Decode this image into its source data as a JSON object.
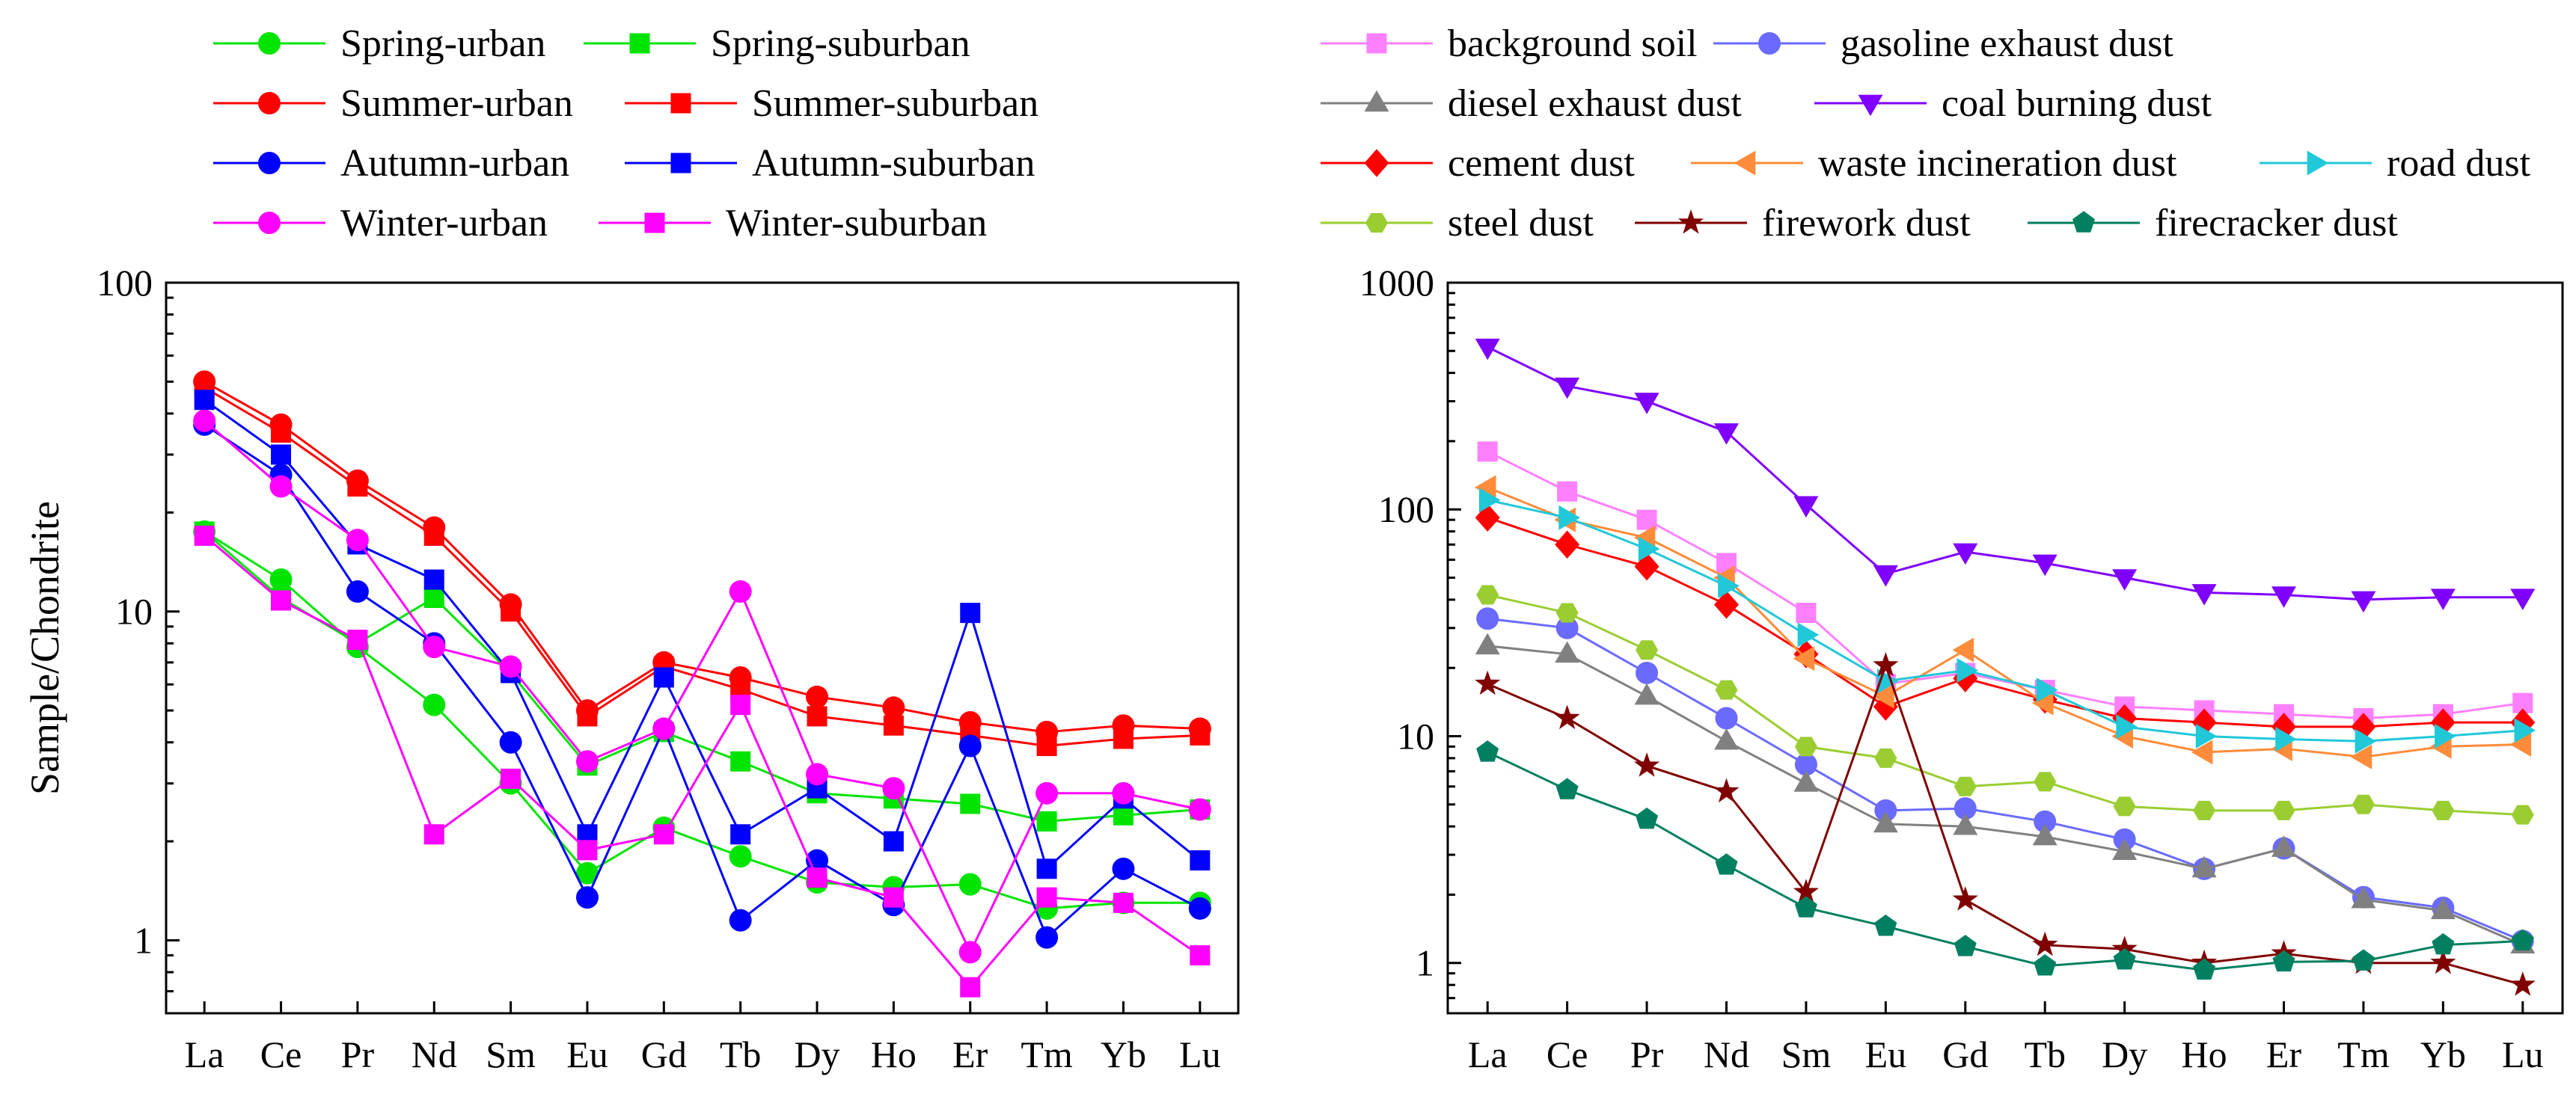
{
  "chart_data": [
    {
      "type": "line",
      "yscale": "log",
      "ylabel": "Sample/Chondrite",
      "xlabel": "",
      "ylim": [
        0.6,
        100
      ],
      "yticks": [
        1,
        10,
        100
      ],
      "ytick_labels": [
        "1",
        "10",
        "100"
      ],
      "categories": [
        "La",
        "Ce",
        "Pr",
        "Nd",
        "Sm",
        "Eu",
        "Gd",
        "Tb",
        "Dy",
        "Ho",
        "Er",
        "Tm",
        "Yb",
        "Lu"
      ],
      "legend_columns": 2,
      "series": [
        {
          "name": "Spring-urban",
          "color": "#00e400",
          "marker": "circle",
          "values": [
            17.5,
            12.5,
            7.8,
            5.2,
            3.0,
            1.6,
            2.2,
            1.8,
            1.5,
            1.45,
            1.48,
            1.25,
            1.3,
            1.3
          ]
        },
        {
          "name": "Spring-suburban",
          "color": "#00e400",
          "marker": "square",
          "values": [
            17.5,
            11,
            8,
            11,
            6.5,
            3.4,
            4.3,
            3.5,
            2.8,
            2.7,
            2.6,
            2.3,
            2.4,
            2.5
          ]
        },
        {
          "name": "Summer-urban",
          "color": "#ff0000",
          "marker": "circle",
          "values": [
            50,
            37,
            25,
            18,
            10.5,
            5,
            7,
            6.3,
            5.5,
            5.1,
            4.6,
            4.3,
            4.5,
            4.4
          ]
        },
        {
          "name": "Summer-suburban",
          "color": "#ff0000",
          "marker": "square",
          "values": [
            48,
            35,
            24,
            17,
            10,
            4.8,
            6.8,
            5.8,
            4.8,
            4.5,
            4.2,
            3.9,
            4.1,
            4.2
          ]
        },
        {
          "name": "Autumn-urban",
          "color": "#0000ff",
          "marker": "circle",
          "values": [
            37,
            26,
            11.5,
            8,
            4,
            1.35,
            4.4,
            1.15,
            1.75,
            1.28,
            3.9,
            1.02,
            1.65,
            1.25
          ]
        },
        {
          "name": "Autumn-suburban",
          "color": "#0000ff",
          "marker": "square",
          "values": [
            44,
            30,
            16,
            12.5,
            6.5,
            2.1,
            6.3,
            2.1,
            2.9,
            2.0,
            9.9,
            1.65,
            2.7,
            1.75
          ]
        },
        {
          "name": "Winter-urban",
          "color": "#ff00ff",
          "marker": "circle",
          "values": [
            38,
            24,
            16.5,
            7.8,
            6.8,
            3.5,
            4.4,
            11.5,
            3.2,
            2.9,
            0.92,
            2.8,
            2.8,
            2.5
          ]
        },
        {
          "name": "Winter-suburban",
          "color": "#ff00ff",
          "marker": "square",
          "values": [
            17,
            10.8,
            8.2,
            2.1,
            3.1,
            1.88,
            2.1,
            5.2,
            1.55,
            1.35,
            0.72,
            1.35,
            1.3,
            0.9
          ]
        }
      ]
    },
    {
      "type": "line",
      "yscale": "log",
      "ylabel": "",
      "xlabel": "",
      "ylim": [
        0.6,
        1000
      ],
      "yticks": [
        1,
        10,
        100,
        1000
      ],
      "ytick_labels": [
        "1",
        "10",
        "100",
        "1000"
      ],
      "categories": [
        "La",
        "Ce",
        "Pr",
        "Nd",
        "Sm",
        "Eu",
        "Gd",
        "Tb",
        "Dy",
        "Ho",
        "Er",
        "Tm",
        "Yb",
        "Lu"
      ],
      "legend_columns": 3,
      "series": [
        {
          "name": "background soil",
          "color": "#ff80ff",
          "marker": "square",
          "values": [
            180,
            120,
            90,
            58,
            35,
            17,
            19,
            16,
            13.5,
            13,
            12.5,
            12,
            12.5,
            14
          ]
        },
        {
          "name": "gasoline exhaust dust",
          "color": "#6a6aff",
          "marker": "circle",
          "values": [
            33,
            30,
            19,
            12,
            7.5,
            4.7,
            4.8,
            4.2,
            3.5,
            2.6,
            3.2,
            1.95,
            1.75,
            1.25
          ]
        },
        {
          "name": "diesel exhaust dust",
          "color": "#808080",
          "marker": "triangle-up",
          "values": [
            25,
            23,
            15,
            9.5,
            6.2,
            4.1,
            4.0,
            3.6,
            3.1,
            2.6,
            3.2,
            1.9,
            1.7,
            1.2
          ]
        },
        {
          "name": "coal burning dust",
          "color": "#7f00ff",
          "marker": "triangle-down",
          "values": [
            520,
            350,
            300,
            220,
            105,
            52,
            65,
            58,
            50,
            43,
            42,
            40,
            41,
            41
          ]
        },
        {
          "name": "cement dust",
          "color": "#ff0000",
          "marker": "diamond",
          "values": [
            92,
            70,
            56,
            38,
            23,
            13.5,
            18,
            14.5,
            12,
            11.5,
            11,
            11,
            11.5,
            11.5
          ]
        },
        {
          "name": "waste incineration dust",
          "color": "#ff8c3a",
          "marker": "triangle-left",
          "values": [
            125,
            90,
            75,
            50,
            22,
            15,
            24,
            14,
            10,
            8.5,
            8.8,
            8.1,
            9,
            9.2
          ]
        },
        {
          "name": "road dust",
          "color": "#20c8d8",
          "marker": "triangle-right",
          "values": [
            110,
            92,
            67,
            46,
            28,
            17.5,
            19.5,
            16,
            11,
            10,
            9.7,
            9.5,
            10,
            10.6
          ]
        },
        {
          "name": "steel dust",
          "color": "#9acd32",
          "marker": "hexagon",
          "values": [
            42,
            35,
            24,
            16,
            9,
            8,
            6,
            6.3,
            4.9,
            4.7,
            4.7,
            5,
            4.7,
            4.5
          ]
        },
        {
          "name": "firework dust",
          "color": "#800000",
          "marker": "star",
          "values": [
            17,
            12,
            7.4,
            5.7,
            2.05,
            20.5,
            1.9,
            1.2,
            1.15,
            1.0,
            1.1,
            1.0,
            1.0,
            0.8
          ]
        },
        {
          "name": "firecracker dust",
          "color": "#008060",
          "marker": "pentagon",
          "values": [
            8.5,
            5.8,
            4.3,
            2.7,
            1.75,
            1.45,
            1.18,
            0.97,
            1.03,
            0.93,
            1.01,
            1.02,
            1.2,
            1.25
          ]
        }
      ]
    }
  ]
}
